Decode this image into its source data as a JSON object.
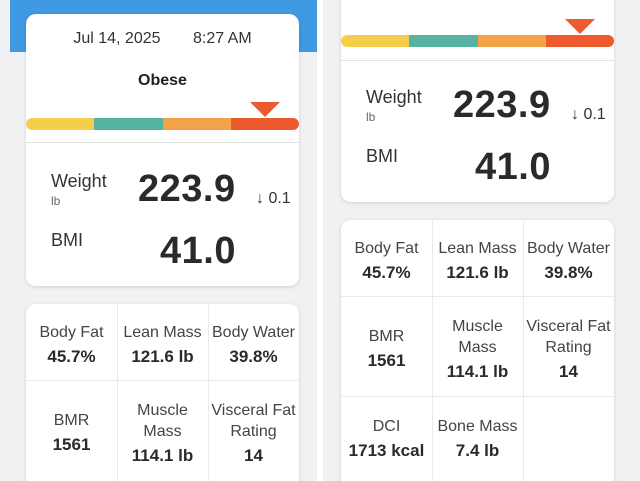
{
  "header": {
    "date": "Jul 14, 2025",
    "time": "8:27 AM",
    "status": "Obese"
  },
  "scale": {
    "colors": [
      "#f5cf4b",
      "#56b3a2",
      "#f3a248",
      "#ec5a2d"
    ],
    "marker_color": "#ec5a2d",
    "active_segment": 4
  },
  "weight": {
    "label": "Weight",
    "unit": "lb",
    "value": "223.9",
    "change": "↓ 0.1"
  },
  "bmi": {
    "label": "BMI",
    "value": "41.0"
  },
  "metrics": [
    {
      "label": "Body Fat",
      "value": "45.7%"
    },
    {
      "label": "Lean Mass",
      "value": "121.6 lb"
    },
    {
      "label": "Body Water",
      "value": "39.8%"
    },
    {
      "label": "BMR",
      "value": "1561"
    },
    {
      "label": "Muscle Mass",
      "value": "114.1 lb"
    },
    {
      "label": "Visceral Fat Rating",
      "value": "14"
    },
    {
      "label": "DCI",
      "value": "1713 kcal"
    },
    {
      "label": "Bone Mass",
      "value": "7.4 lb"
    }
  ],
  "accent": "#3f99e3"
}
